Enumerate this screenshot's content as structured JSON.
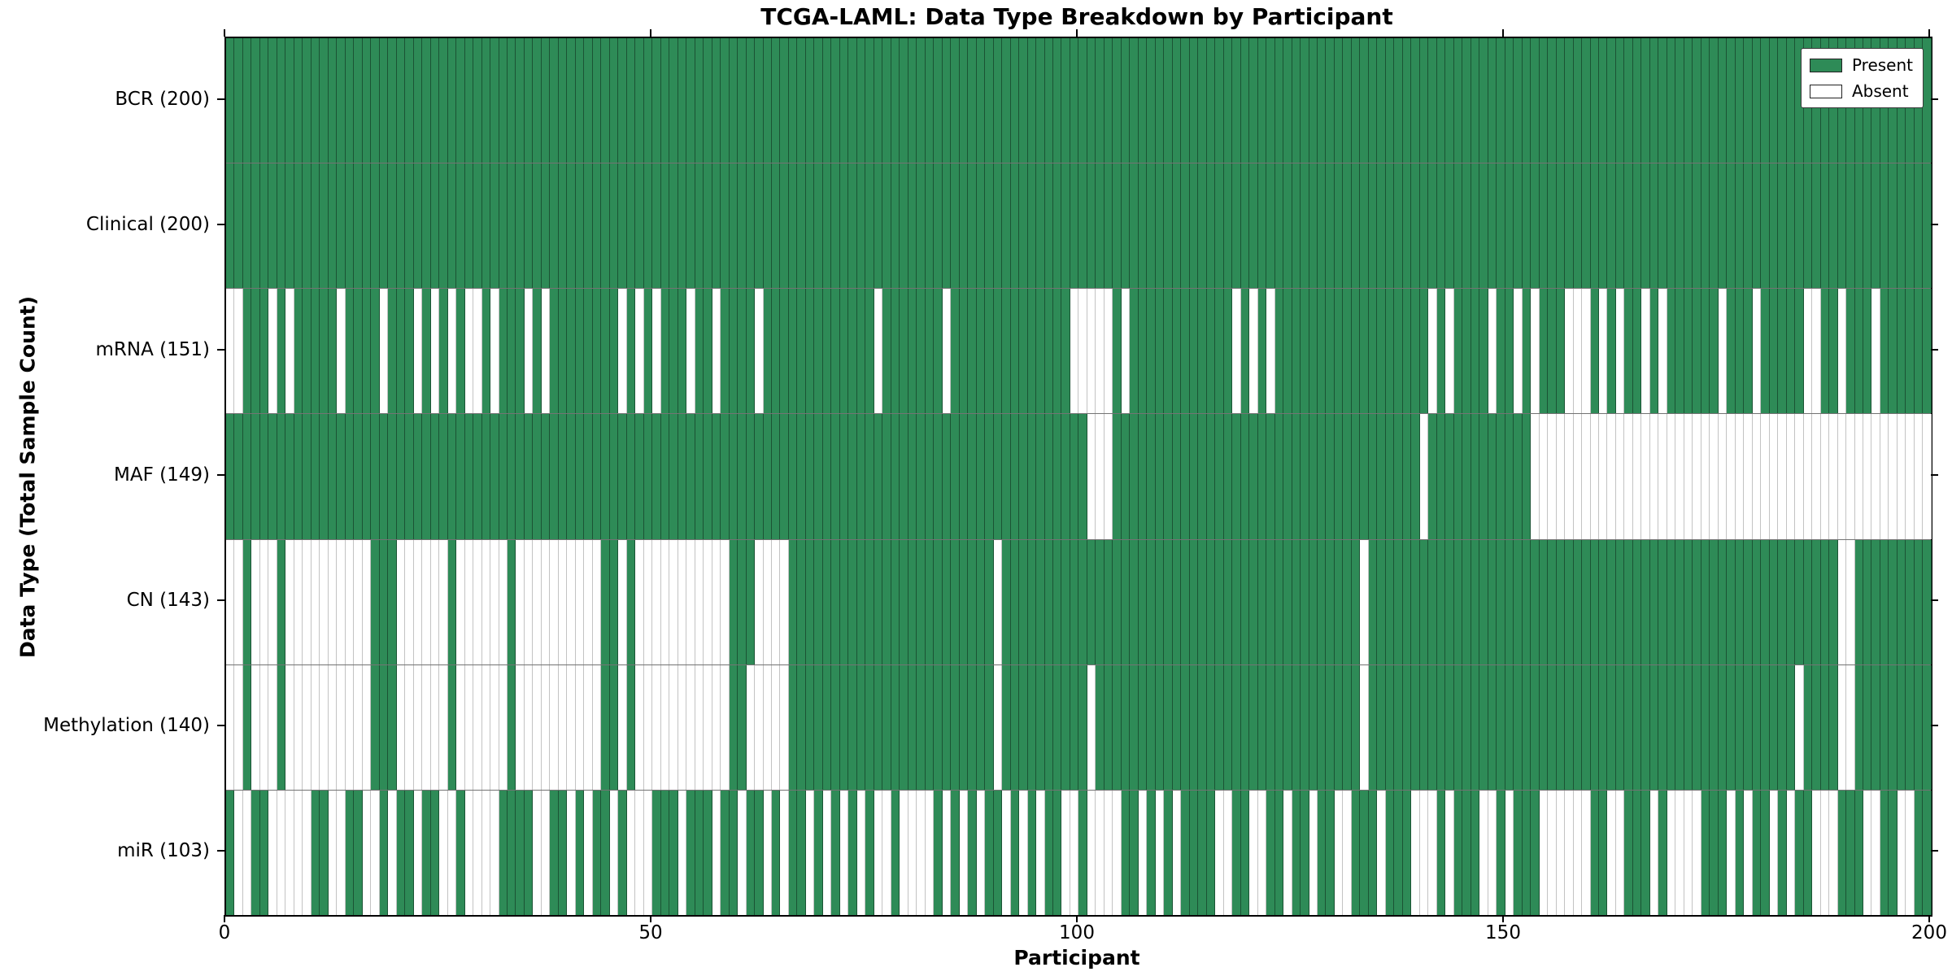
{
  "title": "TCGA-LAML: Data Type Breakdown by Participant",
  "xlabel": "Participant",
  "ylabel": "Data Type (Total Sample Count)",
  "legend": {
    "present_label": "Present",
    "absent_label": "Absent"
  },
  "colors": {
    "present": "#2e8b57",
    "absent": "#ffffff",
    "axis": "#000000"
  },
  "x_ticks": [
    0,
    50,
    100,
    150,
    200
  ],
  "chart_data": {
    "type": "heatmap",
    "title": "TCGA-LAML: Data Type Breakdown by Participant",
    "xlabel": "Participant",
    "ylabel": "Data Type (Total Sample Count)",
    "x_range": [
      0,
      200
    ],
    "n_participants": 200,
    "legend_entries": [
      "Present",
      "Absent"
    ],
    "legend_position": "upper right",
    "rows": [
      {
        "name": "BCR",
        "label": "BCR (200)",
        "present_total": 200,
        "absent_ranges": []
      },
      {
        "name": "Clinical",
        "label": "Clinical (200)",
        "present_total": 200,
        "absent_ranges": []
      },
      {
        "name": "mRNA",
        "label": "mRNA (151)",
        "present_total": 151,
        "absent_ranges": [
          [
            0,
            1
          ],
          [
            5,
            5
          ],
          [
            7,
            7
          ],
          [
            13,
            13
          ],
          [
            18,
            18
          ],
          [
            22,
            22
          ],
          [
            24,
            24
          ],
          [
            26,
            26
          ],
          [
            28,
            29
          ],
          [
            31,
            31
          ],
          [
            35,
            35
          ],
          [
            37,
            37
          ],
          [
            46,
            46
          ],
          [
            48,
            48
          ],
          [
            50,
            50
          ],
          [
            54,
            54
          ],
          [
            57,
            57
          ],
          [
            62,
            62
          ],
          [
            76,
            76
          ],
          [
            84,
            84
          ],
          [
            99,
            103
          ],
          [
            105,
            105
          ],
          [
            118,
            118
          ],
          [
            120,
            120
          ],
          [
            122,
            122
          ],
          [
            141,
            141
          ],
          [
            143,
            143
          ],
          [
            148,
            148
          ],
          [
            151,
            151
          ],
          [
            153,
            153
          ],
          [
            157,
            159
          ],
          [
            161,
            161
          ],
          [
            163,
            163
          ],
          [
            166,
            166
          ],
          [
            168,
            168
          ],
          [
            175,
            175
          ],
          [
            179,
            179
          ],
          [
            185,
            186
          ],
          [
            189,
            189
          ],
          [
            193,
            193
          ]
        ]
      },
      {
        "name": "MAF",
        "label": "MAF (149)",
        "present_total": 149,
        "absent_ranges": [
          [
            101,
            103
          ],
          [
            140,
            140
          ],
          [
            153,
            199
          ]
        ]
      },
      {
        "name": "CN",
        "label": "CN (143)",
        "present_total": 143,
        "absent_ranges": [
          [
            0,
            1
          ],
          [
            3,
            5
          ],
          [
            7,
            16
          ],
          [
            20,
            25
          ],
          [
            27,
            32
          ],
          [
            34,
            43
          ],
          [
            46,
            46
          ],
          [
            48,
            58
          ],
          [
            62,
            65
          ],
          [
            90,
            90
          ],
          [
            133,
            133
          ],
          [
            189,
            190
          ]
        ]
      },
      {
        "name": "Methylation",
        "label": "Methylation (140)",
        "present_total": 140,
        "absent_ranges": [
          [
            0,
            1
          ],
          [
            3,
            5
          ],
          [
            7,
            16
          ],
          [
            20,
            25
          ],
          [
            27,
            32
          ],
          [
            34,
            43
          ],
          [
            46,
            46
          ],
          [
            48,
            58
          ],
          [
            61,
            65
          ],
          [
            90,
            90
          ],
          [
            101,
            101
          ],
          [
            133,
            133
          ],
          [
            184,
            184
          ],
          [
            189,
            190
          ]
        ]
      },
      {
        "name": "miR",
        "label": "miR (103)",
        "present_total": 103,
        "absent_ranges": [
          [
            1,
            2
          ],
          [
            5,
            9
          ],
          [
            12,
            13
          ],
          [
            16,
            17
          ],
          [
            19,
            19
          ],
          [
            22,
            22
          ],
          [
            25,
            26
          ],
          [
            28,
            31
          ],
          [
            36,
            37
          ],
          [
            40,
            40
          ],
          [
            42,
            42
          ],
          [
            45,
            45
          ],
          [
            47,
            49
          ],
          [
            53,
            53
          ],
          [
            57,
            57
          ],
          [
            60,
            60
          ],
          [
            63,
            63
          ],
          [
            65,
            65
          ],
          [
            68,
            68
          ],
          [
            70,
            70
          ],
          [
            72,
            72
          ],
          [
            74,
            74
          ],
          [
            76,
            77
          ],
          [
            79,
            82
          ],
          [
            84,
            84
          ],
          [
            86,
            86
          ],
          [
            88,
            88
          ],
          [
            91,
            91
          ],
          [
            93,
            93
          ],
          [
            95,
            95
          ],
          [
            98,
            99
          ],
          [
            101,
            104
          ],
          [
            107,
            107
          ],
          [
            109,
            109
          ],
          [
            111,
            111
          ],
          [
            116,
            117
          ],
          [
            120,
            121
          ],
          [
            124,
            124
          ],
          [
            127,
            127
          ],
          [
            130,
            131
          ],
          [
            135,
            135
          ],
          [
            139,
            141
          ],
          [
            143,
            143
          ],
          [
            147,
            148
          ],
          [
            150,
            150
          ],
          [
            154,
            159
          ],
          [
            162,
            163
          ],
          [
            167,
            167
          ],
          [
            169,
            172
          ],
          [
            176,
            176
          ],
          [
            178,
            178
          ],
          [
            181,
            181
          ],
          [
            183,
            183
          ],
          [
            186,
            188
          ],
          [
            192,
            193
          ],
          [
            196,
            197
          ]
        ]
      }
    ]
  }
}
